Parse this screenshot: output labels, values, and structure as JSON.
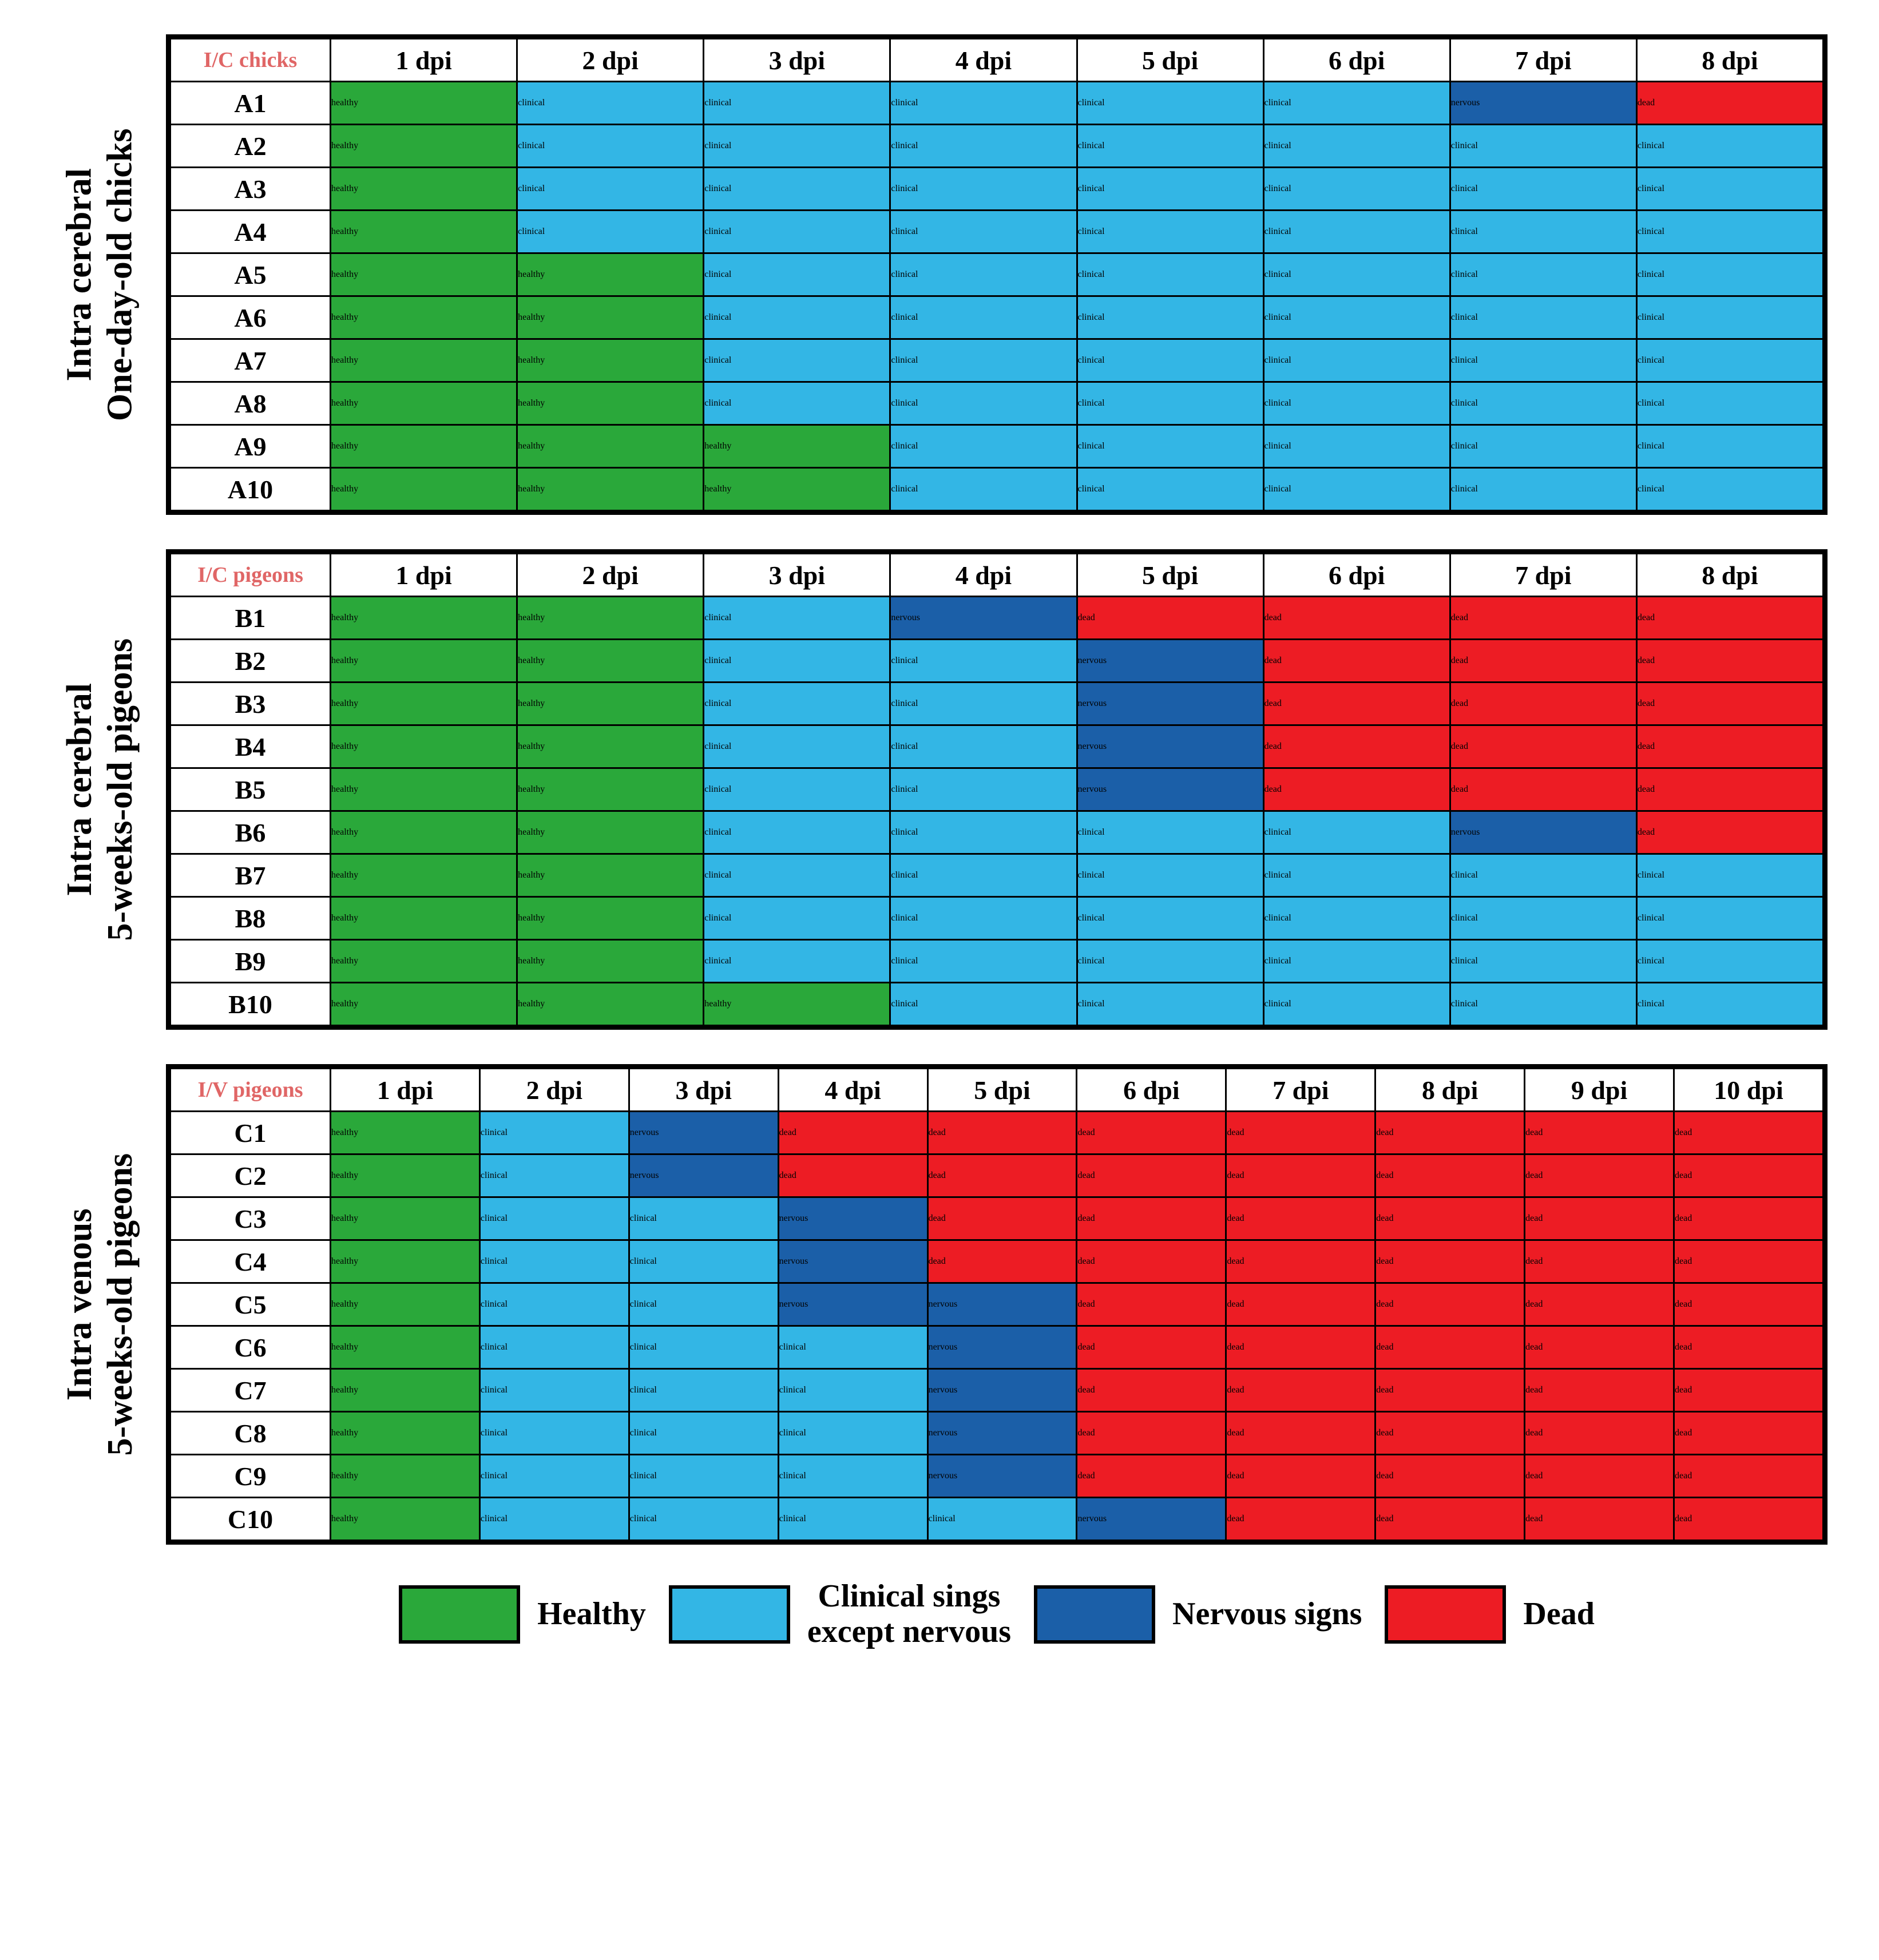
{
  "colors": {
    "healthy": "#2aa83a",
    "clinical": "#33b6e5",
    "nervous": "#1b5fa8",
    "dead": "#ed1c24",
    "bg": "#ffffff",
    "border": "#000000",
    "corner_text": "#e06666"
  },
  "legend": [
    {
      "key": "healthy",
      "label": "Healthy"
    },
    {
      "key": "clinical",
      "label": "Clinical sings\nexcept nervous"
    },
    {
      "key": "nervous",
      "label": "Nervous signs"
    },
    {
      "key": "dead",
      "label": "Dead"
    }
  ],
  "panels": [
    {
      "id": "A",
      "side_label": "Intra cerebral\nOne-day-old chicks",
      "corner": "I/C chicks",
      "columns": [
        "1 dpi",
        "2 dpi",
        "3 dpi",
        "4 dpi",
        "5 dpi",
        "6 dpi",
        "7 dpi",
        "8 dpi"
      ],
      "rows": [
        "A1",
        "A2",
        "A3",
        "A4",
        "A5",
        "A6",
        "A7",
        "A8",
        "A9",
        "A10"
      ],
      "cells": [
        [
          "healthy",
          "clinical",
          "clinical",
          "clinical",
          "clinical",
          "clinical",
          "nervous",
          "dead"
        ],
        [
          "healthy",
          "clinical",
          "clinical",
          "clinical",
          "clinical",
          "clinical",
          "clinical",
          "clinical"
        ],
        [
          "healthy",
          "clinical",
          "clinical",
          "clinical",
          "clinical",
          "clinical",
          "clinical",
          "clinical"
        ],
        [
          "healthy",
          "clinical",
          "clinical",
          "clinical",
          "clinical",
          "clinical",
          "clinical",
          "clinical"
        ],
        [
          "healthy",
          "healthy",
          "clinical",
          "clinical",
          "clinical",
          "clinical",
          "clinical",
          "clinical"
        ],
        [
          "healthy",
          "healthy",
          "clinical",
          "clinical",
          "clinical",
          "clinical",
          "clinical",
          "clinical"
        ],
        [
          "healthy",
          "healthy",
          "clinical",
          "clinical",
          "clinical",
          "clinical",
          "clinical",
          "clinical"
        ],
        [
          "healthy",
          "healthy",
          "clinical",
          "clinical",
          "clinical",
          "clinical",
          "clinical",
          "clinical"
        ],
        [
          "healthy",
          "healthy",
          "healthy",
          "clinical",
          "clinical",
          "clinical",
          "clinical",
          "clinical"
        ],
        [
          "healthy",
          "healthy",
          "healthy",
          "clinical",
          "clinical",
          "clinical",
          "clinical",
          "clinical"
        ]
      ]
    },
    {
      "id": "B",
      "side_label": "Intra cerebral\n5-weeks-old pigeons",
      "corner": "I/C pigeons",
      "columns": [
        "1 dpi",
        "2 dpi",
        "3 dpi",
        "4 dpi",
        "5 dpi",
        "6 dpi",
        "7 dpi",
        "8 dpi"
      ],
      "rows": [
        "B1",
        "B2",
        "B3",
        "B4",
        "B5",
        "B6",
        "B7",
        "B8",
        "B9",
        "B10"
      ],
      "cells": [
        [
          "healthy",
          "healthy",
          "clinical",
          "nervous",
          "dead",
          "dead",
          "dead",
          "dead"
        ],
        [
          "healthy",
          "healthy",
          "clinical",
          "clinical",
          "nervous",
          "dead",
          "dead",
          "dead"
        ],
        [
          "healthy",
          "healthy",
          "clinical",
          "clinical",
          "nervous",
          "dead",
          "dead",
          "dead"
        ],
        [
          "healthy",
          "healthy",
          "clinical",
          "clinical",
          "nervous",
          "dead",
          "dead",
          "dead"
        ],
        [
          "healthy",
          "healthy",
          "clinical",
          "clinical",
          "nervous",
          "dead",
          "dead",
          "dead"
        ],
        [
          "healthy",
          "healthy",
          "clinical",
          "clinical",
          "clinical",
          "clinical",
          "nervous",
          "dead"
        ],
        [
          "healthy",
          "healthy",
          "clinical",
          "clinical",
          "clinical",
          "clinical",
          "clinical",
          "clinical"
        ],
        [
          "healthy",
          "healthy",
          "clinical",
          "clinical",
          "clinical",
          "clinical",
          "clinical",
          "clinical"
        ],
        [
          "healthy",
          "healthy",
          "clinical",
          "clinical",
          "clinical",
          "clinical",
          "clinical",
          "clinical"
        ],
        [
          "healthy",
          "healthy",
          "healthy",
          "clinical",
          "clinical",
          "clinical",
          "clinical",
          "clinical"
        ]
      ]
    },
    {
      "id": "C",
      "side_label": "Intra venous\n5-weeks-old pigeons",
      "corner": "I/V pigeons",
      "columns": [
        "1 dpi",
        "2 dpi",
        "3 dpi",
        "4 dpi",
        "5 dpi",
        "6 dpi",
        "7 dpi",
        "8 dpi",
        "9 dpi",
        "10 dpi"
      ],
      "rows": [
        "C1",
        "C2",
        "C3",
        "C4",
        "C5",
        "C6",
        "C7",
        "C8",
        "C9",
        "C10"
      ],
      "cells": [
        [
          "healthy",
          "clinical",
          "nervous",
          "dead",
          "dead",
          "dead",
          "dead",
          "dead",
          "dead",
          "dead"
        ],
        [
          "healthy",
          "clinical",
          "nervous",
          "dead",
          "dead",
          "dead",
          "dead",
          "dead",
          "dead",
          "dead"
        ],
        [
          "healthy",
          "clinical",
          "clinical",
          "nervous",
          "dead",
          "dead",
          "dead",
          "dead",
          "dead",
          "dead"
        ],
        [
          "healthy",
          "clinical",
          "clinical",
          "nervous",
          "dead",
          "dead",
          "dead",
          "dead",
          "dead",
          "dead"
        ],
        [
          "healthy",
          "clinical",
          "clinical",
          "nervous",
          "nervous",
          "dead",
          "dead",
          "dead",
          "dead",
          "dead"
        ],
        [
          "healthy",
          "clinical",
          "clinical",
          "clinical",
          "nervous",
          "dead",
          "dead",
          "dead",
          "dead",
          "dead"
        ],
        [
          "healthy",
          "clinical",
          "clinical",
          "clinical",
          "nervous",
          "dead",
          "dead",
          "dead",
          "dead",
          "dead"
        ],
        [
          "healthy",
          "clinical",
          "clinical",
          "clinical",
          "nervous",
          "dead",
          "dead",
          "dead",
          "dead",
          "dead"
        ],
        [
          "healthy",
          "clinical",
          "clinical",
          "clinical",
          "nervous",
          "dead",
          "dead",
          "dead",
          "dead",
          "dead"
        ],
        [
          "healthy",
          "clinical",
          "clinical",
          "clinical",
          "clinical",
          "nervous",
          "dead",
          "dead",
          "dead",
          "dead"
        ]
      ]
    }
  ]
}
